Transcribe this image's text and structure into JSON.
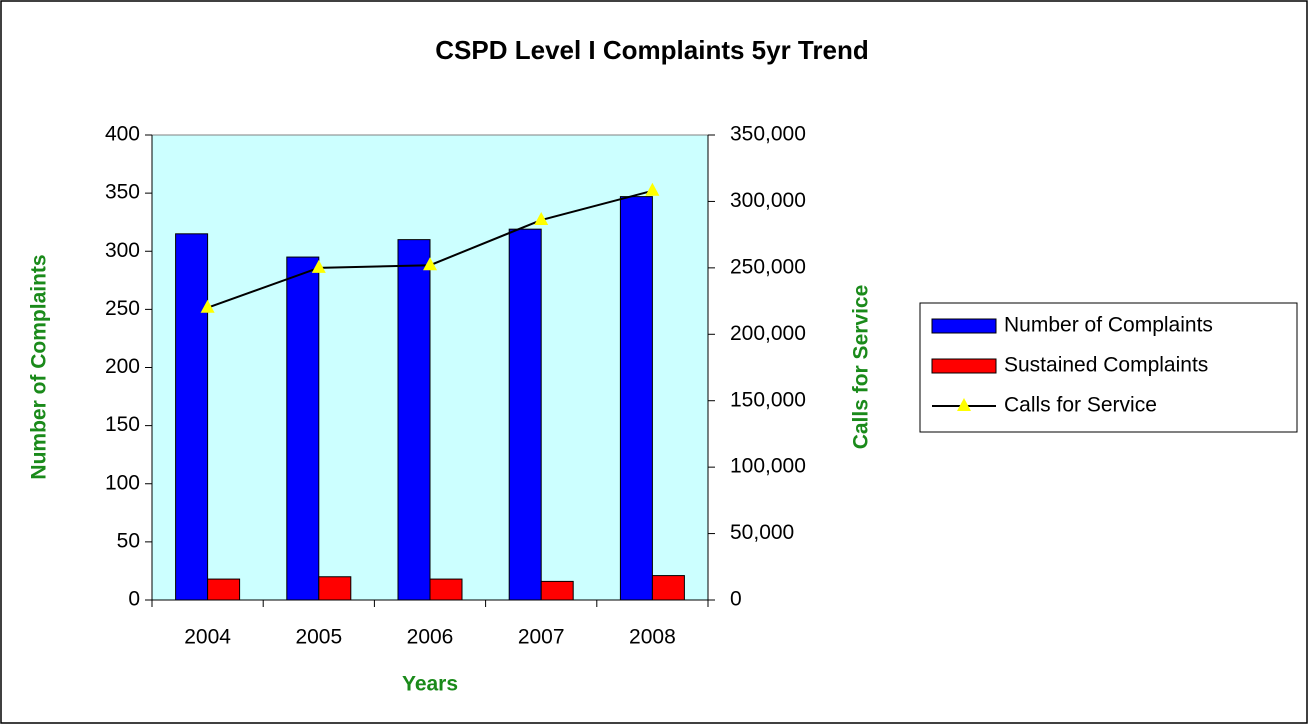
{
  "chart_data": {
    "type": "bar",
    "title": "CSPD Level I Complaints 5yr Trend",
    "x_label": "Years",
    "y_label": "Number of Complaints",
    "y2_label": "Calls for Service",
    "categories": [
      "2004",
      "2005",
      "2006",
      "2007",
      "2008"
    ],
    "series": [
      {
        "name": "Number of Complaints",
        "color": "#0000ff",
        "type": "bar",
        "values": [
          315,
          295,
          310,
          319,
          347
        ]
      },
      {
        "name": "Sustained Complaints",
        "color": "#ff0000",
        "type": "bar",
        "values": [
          18,
          20,
          18,
          16,
          21
        ]
      },
      {
        "name": "Calls for Service",
        "color": "#000000",
        "marker_color": "#ffff00",
        "type": "line",
        "axis": "y2",
        "values": [
          220000,
          250000,
          252000,
          286000,
          308000
        ]
      }
    ],
    "ylim": [
      0,
      400
    ],
    "yticks": [
      0,
      50,
      100,
      150,
      200,
      250,
      300,
      350,
      400
    ],
    "y2lim": [
      0,
      350000
    ],
    "y2ticks": [
      0,
      {
        "value": 50000,
        "label": "50,000"
      },
      {
        "value": 100000,
        "label": "100,000"
      },
      {
        "value": 150000,
        "label": "150,000"
      },
      {
        "value": 200000,
        "label": "200,000"
      },
      {
        "value": 250000,
        "label": "250,000"
      },
      {
        "value": 300000,
        "label": "300,000"
      },
      {
        "value": 350000,
        "label": "350,000"
      }
    ],
    "plot_background": "#ccffff",
    "legend": "right"
  }
}
